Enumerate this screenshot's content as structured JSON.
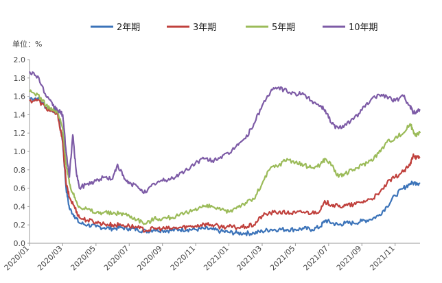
{
  "chart_data": {
    "type": "line",
    "unit_label": "单位：%",
    "ylim": [
      0,
      2.0
    ],
    "y_ticks": [
      "0.0",
      "0.2",
      "0.4",
      "0.6",
      "0.8",
      "1.0",
      "1.2",
      "1.4",
      "1.6",
      "1.8",
      "2.0"
    ],
    "x_tick_labels": [
      "2020/01",
      "2020/03",
      "2020/05",
      "2020/07",
      "2020/09",
      "2020/11",
      "2021/01",
      "2021/03",
      "2021/05",
      "2021/07",
      "2021/09",
      "2021/11"
    ],
    "x_range_months": [
      0,
      23.5
    ],
    "grid": false,
    "legend_position": "top",
    "series": [
      {
        "name": "2年期",
        "color": "#3b73b9",
        "points": [
          [
            0,
            1.58
          ],
          [
            0.5,
            1.58
          ],
          [
            1.0,
            1.48
          ],
          [
            1.4,
            1.45
          ],
          [
            1.7,
            1.42
          ],
          [
            2.0,
            1.1
          ],
          [
            2.2,
            0.6
          ],
          [
            2.4,
            0.38
          ],
          [
            2.7,
            0.3
          ],
          [
            3.0,
            0.22
          ],
          [
            3.5,
            0.2
          ],
          [
            4,
            0.18
          ],
          [
            4.5,
            0.17
          ],
          [
            5,
            0.16
          ],
          [
            5.5,
            0.17
          ],
          [
            6,
            0.16
          ],
          [
            6.5,
            0.15
          ],
          [
            7,
            0.13
          ],
          [
            7.5,
            0.15
          ],
          [
            8,
            0.14
          ],
          [
            8.5,
            0.14
          ],
          [
            9,
            0.15
          ],
          [
            9.5,
            0.15
          ],
          [
            10,
            0.15
          ],
          [
            10.5,
            0.16
          ],
          [
            11,
            0.15
          ],
          [
            11.5,
            0.13
          ],
          [
            12,
            0.12
          ],
          [
            12.5,
            0.11
          ],
          [
            13,
            0.11
          ],
          [
            13.5,
            0.11
          ],
          [
            14,
            0.13
          ],
          [
            14.5,
            0.15
          ],
          [
            15,
            0.15
          ],
          [
            15.5,
            0.15
          ],
          [
            16,
            0.15
          ],
          [
            16.5,
            0.16
          ],
          [
            17,
            0.15
          ],
          [
            17.5,
            0.18
          ],
          [
            17.8,
            0.25
          ],
          [
            18.2,
            0.22
          ],
          [
            18.6,
            0.2
          ],
          [
            19,
            0.22
          ],
          [
            19.5,
            0.22
          ],
          [
            20,
            0.24
          ],
          [
            20.5,
            0.26
          ],
          [
            21,
            0.3
          ],
          [
            21.5,
            0.4
          ],
          [
            22,
            0.52
          ],
          [
            22.5,
            0.6
          ],
          [
            22.9,
            0.65
          ],
          [
            23.3,
            0.66
          ],
          [
            23.5,
            0.65
          ]
        ]
      },
      {
        "name": "3年期",
        "color": "#c0413d",
        "points": [
          [
            0,
            1.55
          ],
          [
            0.5,
            1.56
          ],
          [
            1.0,
            1.47
          ],
          [
            1.4,
            1.43
          ],
          [
            1.7,
            1.4
          ],
          [
            2.0,
            1.1
          ],
          [
            2.2,
            0.65
          ],
          [
            2.4,
            0.5
          ],
          [
            2.7,
            0.4
          ],
          [
            3.0,
            0.28
          ],
          [
            3.5,
            0.25
          ],
          [
            4,
            0.23
          ],
          [
            4.5,
            0.21
          ],
          [
            5,
            0.2
          ],
          [
            5.5,
            0.2
          ],
          [
            6,
            0.19
          ],
          [
            6.5,
            0.17
          ],
          [
            7,
            0.14
          ],
          [
            7.5,
            0.16
          ],
          [
            8,
            0.16
          ],
          [
            8.5,
            0.16
          ],
          [
            9,
            0.17
          ],
          [
            9.5,
            0.18
          ],
          [
            10,
            0.19
          ],
          [
            10.5,
            0.21
          ],
          [
            11,
            0.2
          ],
          [
            11.5,
            0.18
          ],
          [
            12,
            0.18
          ],
          [
            12.5,
            0.17
          ],
          [
            13,
            0.18
          ],
          [
            13.5,
            0.2
          ],
          [
            14,
            0.3
          ],
          [
            14.5,
            0.33
          ],
          [
            15,
            0.34
          ],
          [
            15.5,
            0.33
          ],
          [
            16,
            0.33
          ],
          [
            16.5,
            0.34
          ],
          [
            17,
            0.33
          ],
          [
            17.5,
            0.36
          ],
          [
            17.8,
            0.45
          ],
          [
            18.2,
            0.42
          ],
          [
            18.6,
            0.4
          ],
          [
            19,
            0.41
          ],
          [
            19.5,
            0.42
          ],
          [
            20,
            0.45
          ],
          [
            20.5,
            0.48
          ],
          [
            21,
            0.53
          ],
          [
            21.5,
            0.65
          ],
          [
            22,
            0.72
          ],
          [
            22.5,
            0.78
          ],
          [
            22.9,
            0.85
          ],
          [
            23.1,
            0.97
          ],
          [
            23.3,
            0.93
          ],
          [
            23.5,
            0.94
          ]
        ]
      },
      {
        "name": "5年期",
        "color": "#9bbb59",
        "points": [
          [
            0,
            1.65
          ],
          [
            0.5,
            1.62
          ],
          [
            1.0,
            1.5
          ],
          [
            1.4,
            1.45
          ],
          [
            1.7,
            1.42
          ],
          [
            2.0,
            1.25
          ],
          [
            2.2,
            0.85
          ],
          [
            2.4,
            0.65
          ],
          [
            2.7,
            0.5
          ],
          [
            3.0,
            0.4
          ],
          [
            3.5,
            0.37
          ],
          [
            4,
            0.33
          ],
          [
            4.5,
            0.34
          ],
          [
            5,
            0.32
          ],
          [
            5.5,
            0.33
          ],
          [
            6,
            0.3
          ],
          [
            6.5,
            0.26
          ],
          [
            7,
            0.21
          ],
          [
            7.5,
            0.27
          ],
          [
            8,
            0.27
          ],
          [
            8.5,
            0.28
          ],
          [
            9,
            0.3
          ],
          [
            9.5,
            0.33
          ],
          [
            10,
            0.38
          ],
          [
            10.5,
            0.4
          ],
          [
            11,
            0.4
          ],
          [
            11.5,
            0.36
          ],
          [
            12,
            0.34
          ],
          [
            12.5,
            0.4
          ],
          [
            13,
            0.44
          ],
          [
            13.5,
            0.48
          ],
          [
            14,
            0.65
          ],
          [
            14.5,
            0.82
          ],
          [
            15,
            0.85
          ],
          [
            15.5,
            0.92
          ],
          [
            16,
            0.88
          ],
          [
            16.5,
            0.85
          ],
          [
            17,
            0.82
          ],
          [
            17.5,
            0.86
          ],
          [
            17.8,
            0.92
          ],
          [
            18.2,
            0.85
          ],
          [
            18.6,
            0.72
          ],
          [
            19,
            0.76
          ],
          [
            19.5,
            0.8
          ],
          [
            20,
            0.85
          ],
          [
            20.5,
            0.9
          ],
          [
            21,
            0.98
          ],
          [
            21.5,
            1.1
          ],
          [
            22,
            1.15
          ],
          [
            22.5,
            1.2
          ],
          [
            22.9,
            1.3
          ],
          [
            23.1,
            1.22
          ],
          [
            23.3,
            1.18
          ],
          [
            23.5,
            1.2
          ]
        ]
      },
      {
        "name": "10年期",
        "color": "#7d5ba6",
        "points": [
          [
            0,
            1.87
          ],
          [
            0.5,
            1.82
          ],
          [
            1.0,
            1.6
          ],
          [
            1.4,
            1.5
          ],
          [
            1.7,
            1.45
          ],
          [
            2.0,
            1.4
          ],
          [
            2.2,
            1.0
          ],
          [
            2.4,
            0.72
          ],
          [
            2.6,
            1.18
          ],
          [
            2.8,
            0.8
          ],
          [
            3.0,
            0.6
          ],
          [
            3.5,
            0.65
          ],
          [
            4,
            0.68
          ],
          [
            4.5,
            0.72
          ],
          [
            5,
            0.7
          ],
          [
            5.3,
            0.86
          ],
          [
            5.7,
            0.7
          ],
          [
            6,
            0.65
          ],
          [
            6.5,
            0.62
          ],
          [
            7,
            0.55
          ],
          [
            7.5,
            0.65
          ],
          [
            8,
            0.68
          ],
          [
            8.5,
            0.7
          ],
          [
            9,
            0.75
          ],
          [
            9.5,
            0.8
          ],
          [
            10,
            0.88
          ],
          [
            10.5,
            0.92
          ],
          [
            11,
            0.9
          ],
          [
            11.5,
            0.94
          ],
          [
            12,
            0.97
          ],
          [
            12.5,
            1.08
          ],
          [
            13,
            1.14
          ],
          [
            13.5,
            1.3
          ],
          [
            14,
            1.5
          ],
          [
            14.5,
            1.65
          ],
          [
            15,
            1.7
          ],
          [
            15.5,
            1.65
          ],
          [
            16,
            1.63
          ],
          [
            16.5,
            1.62
          ],
          [
            17,
            1.55
          ],
          [
            17.5,
            1.5
          ],
          [
            17.8,
            1.45
          ],
          [
            18.2,
            1.3
          ],
          [
            18.6,
            1.25
          ],
          [
            19,
            1.3
          ],
          [
            19.5,
            1.35
          ],
          [
            20,
            1.45
          ],
          [
            20.5,
            1.55
          ],
          [
            21,
            1.62
          ],
          [
            21.5,
            1.6
          ],
          [
            22,
            1.55
          ],
          [
            22.5,
            1.6
          ],
          [
            22.9,
            1.5
          ],
          [
            23.1,
            1.42
          ],
          [
            23.3,
            1.44
          ],
          [
            23.5,
            1.46
          ]
        ]
      }
    ]
  }
}
